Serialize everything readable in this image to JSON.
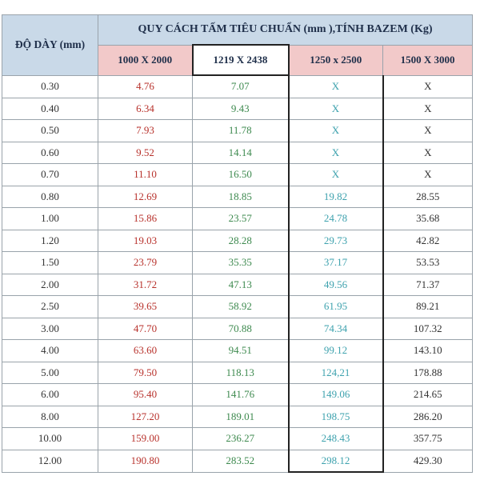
{
  "table": {
    "thickness_header": "ĐỘ DÀY (mm)",
    "group_header": "QUY CÁCH TẤM TIÊU CHUẨN (mm ),TÍNH BAZEM (Kg)",
    "sizes": [
      "1000 X 2000",
      "1219 X 2438",
      "1250 x 2500",
      "1500 X 3000"
    ],
    "rows": [
      [
        "0.30",
        "4.76",
        "7.07",
        "X",
        "X"
      ],
      [
        "0.40",
        "6.34",
        "9.43",
        "X",
        "X"
      ],
      [
        "0.50",
        "7.93",
        "11.78",
        "X",
        "X"
      ],
      [
        "0.60",
        "9.52",
        "14.14",
        "X",
        "X"
      ],
      [
        "0.70",
        "11.10",
        "16.50",
        "X",
        "X"
      ],
      [
        "0.80",
        "12.69",
        "18.85",
        "19.82",
        "28.55"
      ],
      [
        "1.00",
        "15.86",
        "23.57",
        "24.78",
        "35.68"
      ],
      [
        "1.20",
        "19.03",
        "28.28",
        "29.73",
        "42.82"
      ],
      [
        "1.50",
        "23.79",
        "35.35",
        "37.17",
        "53.53"
      ],
      [
        "2.00",
        "31.72",
        "47.13",
        "49.56",
        "71.37"
      ],
      [
        "2.50",
        "39.65",
        "58.92",
        "61.95",
        "89.21"
      ],
      [
        "3.00",
        "47.70",
        "70.88",
        "74.34",
        "107.32"
      ],
      [
        "4.00",
        "63.60",
        "94.51",
        "99.12",
        "143.10"
      ],
      [
        "5.00",
        "79.50",
        "118.13",
        "124,21",
        "178.88"
      ],
      [
        "6.00",
        "95.40",
        "141.76",
        "149.06",
        "214.65"
      ],
      [
        "8.00",
        "127.20",
        "189.01",
        "198.75",
        "286.20"
      ],
      [
        "10.00",
        "159.00",
        "236.27",
        "248.43",
        "357.75"
      ],
      [
        "12.00",
        "190.80",
        "283.52",
        "298.12",
        "429.30"
      ]
    ]
  }
}
